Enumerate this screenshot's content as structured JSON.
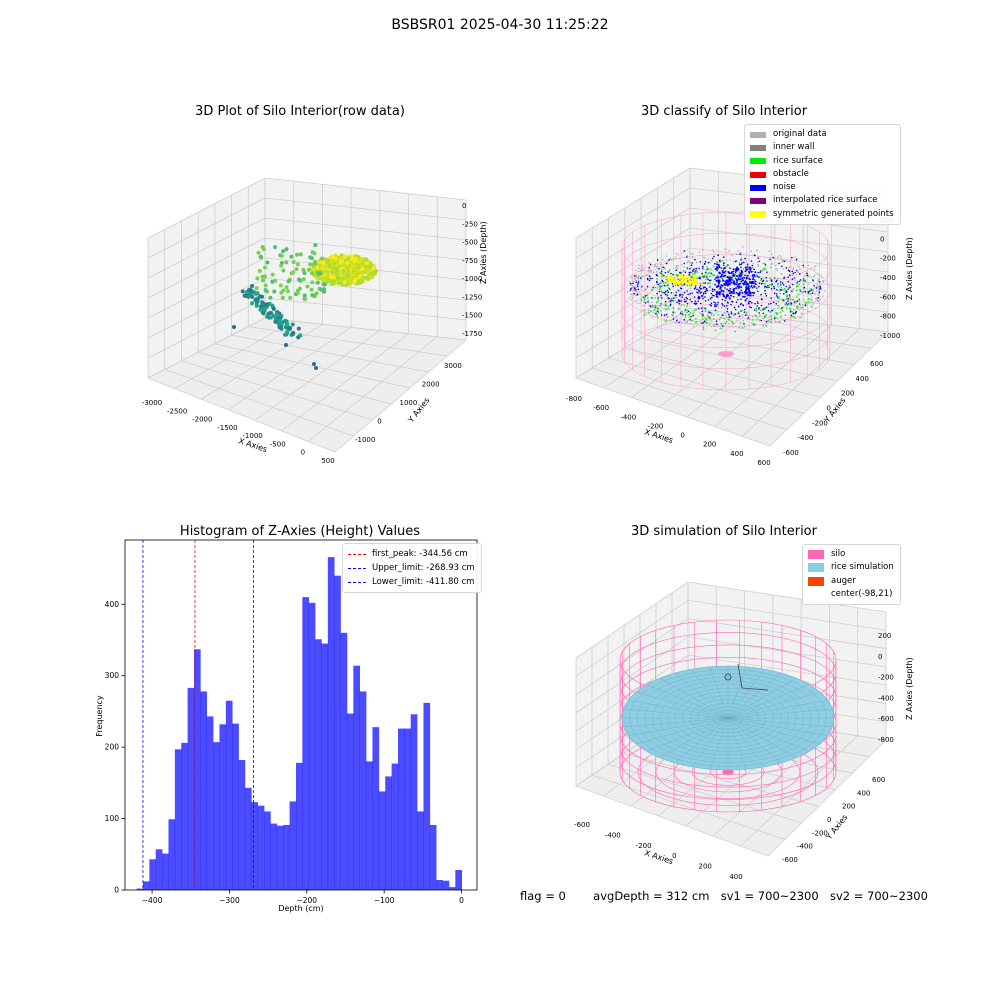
{
  "figure": {
    "title": "BSBSR01 2025-04-30 11:25:22",
    "status": {
      "flag": "flag = 0",
      "avg_depth": "avgDepth = 312 cm",
      "sv1": "sv1 = 700~2300",
      "sv2": "sv2 = 700~2300"
    }
  },
  "panels": {
    "raw": {
      "title": "3D Plot of Silo Interior(row data)",
      "xlabel": "X Axies",
      "ylabel": "Y Axies",
      "zlabel": "Z Axies (Depth)",
      "xticks": [
        "-3000",
        "-2500",
        "-2000",
        "-1500",
        "-1000",
        "-500",
        "0",
        "500"
      ],
      "yticks": [
        "-1000",
        "0",
        "1000",
        "2000",
        "3000"
      ],
      "zticks": [
        "0",
        "-250",
        "-500",
        "-750",
        "-1000",
        "-1250",
        "-1500",
        "-1750"
      ]
    },
    "classify": {
      "title": "3D classify of Silo Interior",
      "xlabel": "X Axies",
      "ylabel": "Y Axies",
      "zlabel": "Z Axies (Depth)",
      "xticks": [
        "-800",
        "-600",
        "-400",
        "-200",
        "0",
        "200",
        "400",
        "600"
      ],
      "yticks": [
        "-600",
        "-400",
        "-200",
        "0",
        "200",
        "400",
        "600"
      ],
      "zticks": [
        "200",
        "0",
        "-200",
        "-400",
        "-600",
        "-800",
        "-1000"
      ],
      "legend": [
        {
          "label": "original data",
          "color": "#b0b0b0"
        },
        {
          "label": "inner wall",
          "color": "#808080"
        },
        {
          "label": "rice surface",
          "color": "#00ee00"
        },
        {
          "label": "obstacle",
          "color": "#ee0000"
        },
        {
          "label": "noise",
          "color": "#0000ee"
        },
        {
          "label": "interpolated rice surface",
          "color": "#800080"
        },
        {
          "label": "symmetric generated points",
          "color": "#ffff00"
        }
      ]
    },
    "simulation": {
      "title": "3D simulation of Silo Interior",
      "xlabel": "X Axies",
      "ylabel": "Y Axies",
      "zlabel": "Z Axies (Depth)",
      "xticks": [
        "-600",
        "-400",
        "-200",
        "0",
        "200",
        "400"
      ],
      "yticks": [
        "-600",
        "-400",
        "-200",
        "0",
        "200",
        "400",
        "600"
      ],
      "zticks": [
        "200",
        "0",
        "-200",
        "-400",
        "-600",
        "-800"
      ],
      "legend": [
        {
          "label": "silo",
          "color": "#ff69b4"
        },
        {
          "label": "rice simulation",
          "color": "#87ceeb"
        },
        {
          "label": "auger",
          "color": "#ff4500"
        },
        {
          "label": "center(-98,21)",
          "color": ""
        }
      ]
    }
  },
  "chart_data": {
    "type": "bar",
    "title": "Histogram of Z-Axies (Height) Values",
    "xlabel": "Depth (cm)",
    "ylabel": "Frequency",
    "xlim": [
      -435,
      20
    ],
    "ylim": [
      0,
      490
    ],
    "xticks": [
      -400,
      -300,
      -200,
      -100,
      0
    ],
    "yticks": [
      0,
      100,
      200,
      300,
      400
    ],
    "bar_color": "#0000ff",
    "bin_width": 8.24,
    "bin_edges_start": -420,
    "values": [
      2,
      12,
      43,
      57,
      51,
      99,
      197,
      206,
      283,
      337,
      278,
      243,
      207,
      232,
      265,
      233,
      182,
      143,
      123,
      118,
      110,
      93,
      90,
      91,
      124,
      178,
      410,
      402,
      351,
      345,
      466,
      440,
      360,
      247,
      314,
      278,
      180,
      228,
      138,
      159,
      177,
      226,
      226,
      246,
      110,
      262,
      91,
      14,
      13,
      4,
      28
    ],
    "reference_lines": [
      {
        "label": "first_peak: -344.56 cm",
        "x": -344.56,
        "color": "#ff0000"
      },
      {
        "label": "Upper_limit: -268.93 cm",
        "x": -268.93,
        "color": "#0000ff"
      },
      {
        "label": "Lower_limit: -411.80 cm",
        "x": -411.8,
        "color": "#0000ff"
      }
    ],
    "legend_position": "upper right",
    "grid": false
  }
}
